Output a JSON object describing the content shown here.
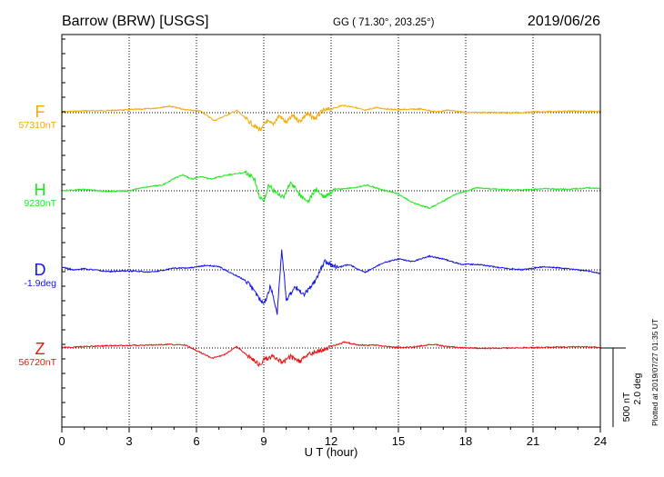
{
  "header": {
    "station": "Barrow (BRW)  [USGS]",
    "coords": "GG ( 71.30°, 203.25°)",
    "date": "2019/06/26"
  },
  "side_note": "Plotted at 2019/07/27 01:35 UT",
  "chart_data": {
    "type": "line",
    "xlabel": "U T (hour)",
    "xlim": [
      0,
      24
    ],
    "xticks": [
      0,
      3,
      6,
      9,
      12,
      15,
      18,
      21,
      24
    ],
    "grid": true,
    "scale": {
      "field": "500 nT",
      "angle": "2.0 deg"
    },
    "series": [
      {
        "name": "F",
        "baseline_label": "57310nT",
        "color": "#f5a800",
        "points": [
          [
            0,
            -6
          ],
          [
            1,
            -12
          ],
          [
            2,
            -14
          ],
          [
            3,
            -20
          ],
          [
            4,
            -28
          ],
          [
            4.8,
            -45
          ],
          [
            5.5,
            -20
          ],
          [
            6.2,
            -10
          ],
          [
            6.8,
            55
          ],
          [
            7.3,
            20
          ],
          [
            7.8,
            -15
          ],
          [
            8.2,
            40
          ],
          [
            8.6,
            95
          ],
          [
            8.9,
            120
          ],
          [
            9.1,
            60
          ],
          [
            9.4,
            80
          ],
          [
            9.7,
            20
          ],
          [
            10,
            70
          ],
          [
            10.3,
            20
          ],
          [
            10.6,
            60
          ],
          [
            10.9,
            10
          ],
          [
            11.3,
            40
          ],
          [
            11.6,
            -10
          ],
          [
            12,
            -25
          ],
          [
            12.5,
            -50
          ],
          [
            13,
            -40
          ],
          [
            13.5,
            -15
          ],
          [
            14,
            -35
          ],
          [
            14.5,
            -25
          ],
          [
            15,
            -20
          ],
          [
            16,
            -25
          ],
          [
            16.7,
            -5
          ],
          [
            17.2,
            -18
          ],
          [
            18,
            0
          ],
          [
            19,
            -2
          ],
          [
            20,
            2
          ],
          [
            21,
            -4
          ],
          [
            22,
            -8
          ],
          [
            23,
            -10
          ],
          [
            24,
            -8
          ]
        ]
      },
      {
        "name": "H",
        "baseline_label": "9230nT",
        "color": "#1ee81e",
        "points": [
          [
            0,
            0
          ],
          [
            1,
            -10
          ],
          [
            2,
            5
          ],
          [
            3,
            0
          ],
          [
            3.5,
            -20
          ],
          [
            4.5,
            -40
          ],
          [
            5,
            -85
          ],
          [
            5.4,
            -110
          ],
          [
            5.8,
            -80
          ],
          [
            6.2,
            -100
          ],
          [
            6.6,
            -80
          ],
          [
            7,
            -95
          ],
          [
            7.4,
            -110
          ],
          [
            7.9,
            -120
          ],
          [
            8.2,
            -130
          ],
          [
            8.6,
            -80
          ],
          [
            8.8,
            40
          ],
          [
            9,
            80
          ],
          [
            9.2,
            -40
          ],
          [
            9.6,
            20
          ],
          [
            9.9,
            40
          ],
          [
            10.2,
            -60
          ],
          [
            10.6,
            30
          ],
          [
            11,
            70
          ],
          [
            11.3,
            -10
          ],
          [
            11.7,
            40
          ],
          [
            12.2,
            -10
          ],
          [
            13,
            -20
          ],
          [
            13.6,
            -40
          ],
          [
            14.2,
            -10
          ],
          [
            15,
            20
          ],
          [
            15.6,
            80
          ],
          [
            16.4,
            120
          ],
          [
            17,
            70
          ],
          [
            17.6,
            20
          ],
          [
            18.5,
            -20
          ],
          [
            19.5,
            -10
          ],
          [
            20.5,
            -5
          ],
          [
            21.5,
            -15
          ],
          [
            22.5,
            -10
          ],
          [
            23.5,
            -20
          ],
          [
            24,
            -15
          ]
        ]
      },
      {
        "name": "D",
        "baseline_label": "-1.9deg",
        "color": "#1414e6",
        "points": [
          [
            0,
            -0.1
          ],
          [
            0.5,
            0
          ],
          [
            1,
            -0.04
          ],
          [
            2,
            0.06
          ],
          [
            3,
            0.04
          ],
          [
            4,
            0.08
          ],
          [
            5,
            -0.06
          ],
          [
            5.8,
            -0.08
          ],
          [
            6.4,
            -0.16
          ],
          [
            7,
            -0.12
          ],
          [
            7.5,
            0.1
          ],
          [
            8.2,
            0.4
          ],
          [
            8.6,
            0.8
          ],
          [
            9,
            1.3
          ],
          [
            9.3,
            0.6
          ],
          [
            9.6,
            1.6
          ],
          [
            9.8,
            -0.8
          ],
          [
            10,
            1.1
          ],
          [
            10.4,
            0.6
          ],
          [
            10.8,
            0.9
          ],
          [
            11.3,
            0.4
          ],
          [
            11.7,
            -0.3
          ],
          [
            12.3,
            -0.08
          ],
          [
            12.8,
            -0.2
          ],
          [
            13.5,
            0.1
          ],
          [
            14.3,
            -0.25
          ],
          [
            15,
            -0.4
          ],
          [
            15.6,
            -0.3
          ],
          [
            16.4,
            -0.5
          ],
          [
            17,
            -0.4
          ],
          [
            17.8,
            -0.2
          ],
          [
            18.5,
            -0.2
          ],
          [
            19.5,
            -0.08
          ],
          [
            20.5,
            0
          ],
          [
            21.5,
            -0.12
          ],
          [
            22.5,
            -0.04
          ],
          [
            23.5,
            0.05
          ],
          [
            24,
            0.14
          ]
        ]
      },
      {
        "name": "Z",
        "baseline_label": "56720nT",
        "color": "#e61414",
        "points": [
          [
            0,
            -3
          ],
          [
            1,
            -10
          ],
          [
            2,
            -15
          ],
          [
            3,
            -18
          ],
          [
            4,
            -20
          ],
          [
            4.8,
            -25
          ],
          [
            5.5,
            -20
          ],
          [
            6.1,
            25
          ],
          [
            6.7,
            70
          ],
          [
            7.2,
            50
          ],
          [
            7.8,
            -10
          ],
          [
            8.3,
            55
          ],
          [
            8.8,
            115
          ],
          [
            9,
            85
          ],
          [
            9.4,
            60
          ],
          [
            9.8,
            100
          ],
          [
            10.2,
            60
          ],
          [
            10.6,
            95
          ],
          [
            11,
            40
          ],
          [
            11.5,
            20
          ],
          [
            12,
            -10
          ],
          [
            12.6,
            -40
          ],
          [
            13.2,
            -20
          ],
          [
            14,
            -20
          ],
          [
            14.8,
            -5
          ],
          [
            15.6,
            -5
          ],
          [
            16,
            -15
          ],
          [
            16.6,
            -25
          ],
          [
            17.1,
            -10
          ],
          [
            18,
            0
          ],
          [
            19,
            2
          ],
          [
            20,
            0
          ],
          [
            21,
            -3
          ],
          [
            22,
            -5
          ],
          [
            23,
            -8
          ],
          [
            24,
            -3
          ]
        ]
      }
    ]
  }
}
